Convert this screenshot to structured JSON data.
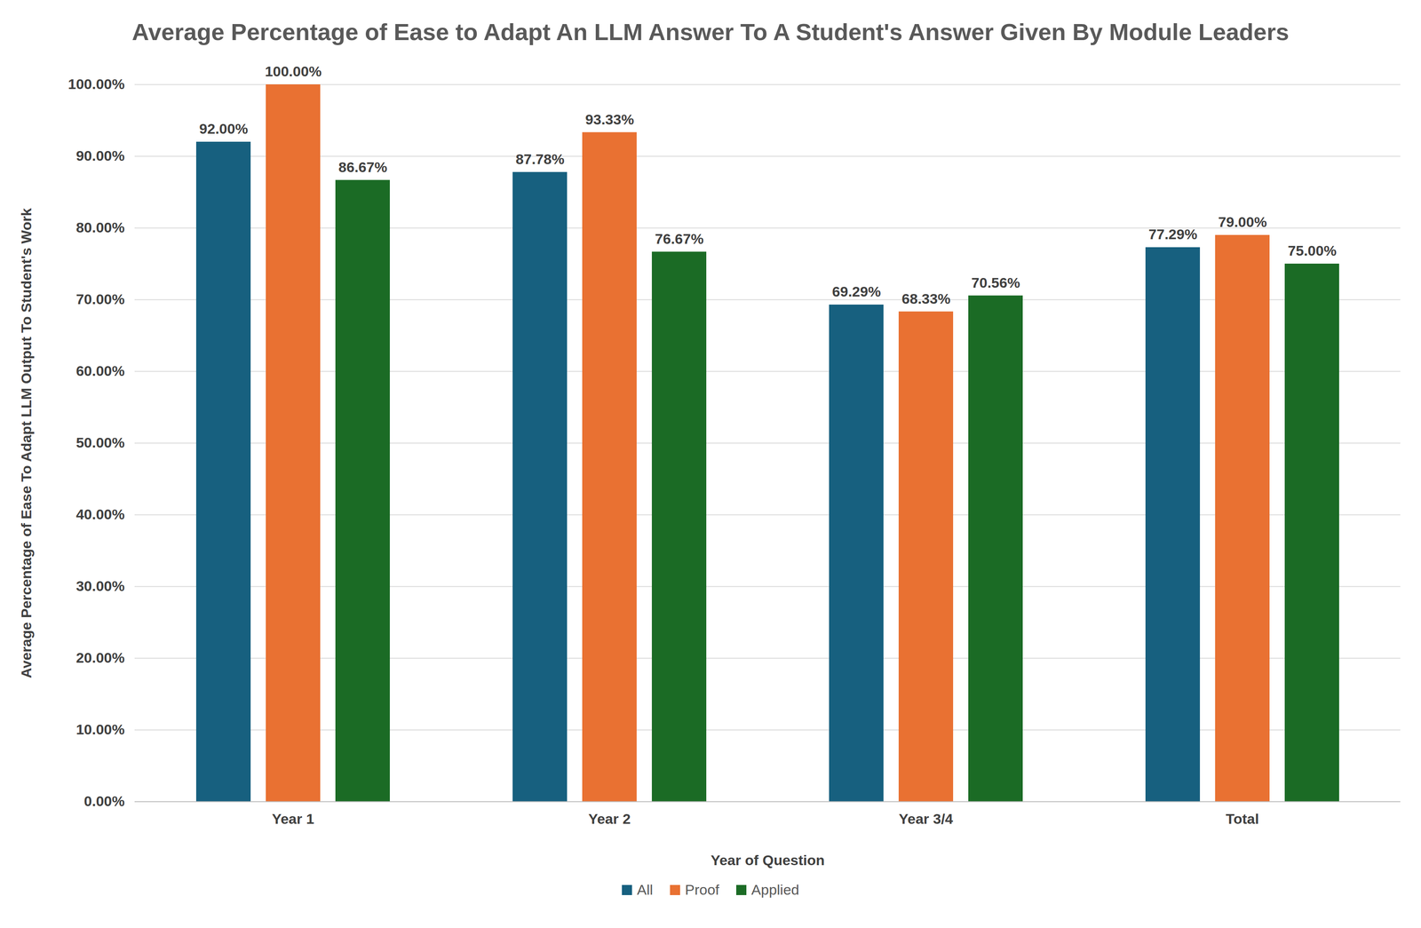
{
  "chart_data": {
    "type": "bar",
    "title": "Average Percentage of Ease to Adapt An LLM Answer To A Student's Answer Given By Module Leaders",
    "xlabel": "Year of Question",
    "ylabel": "Average Percentage of Ease To Adapt LLM Output To Student's Work",
    "categories": [
      "Year 1",
      "Year 2",
      "Year 3/4",
      "Total"
    ],
    "series": [
      {
        "name": "All",
        "color": "#17607f",
        "values": [
          92.0,
          87.78,
          69.29,
          77.29
        ],
        "value_labels": [
          "92.00%",
          "87.78%",
          "69.29%",
          "77.29%"
        ]
      },
      {
        "name": "Proof",
        "color": "#e97132",
        "values": [
          100.0,
          93.33,
          68.33,
          79.0
        ],
        "value_labels": [
          "100.00%",
          "93.33%",
          "68.33%",
          "79.00%"
        ]
      },
      {
        "name": "Applied",
        "color": "#1b6b25",
        "values": [
          86.67,
          76.67,
          70.56,
          75.0
        ],
        "value_labels": [
          "86.67%",
          "76.67%",
          "70.56%",
          "75.00%"
        ]
      }
    ],
    "ylim": [
      0,
      100
    ],
    "yticks": [
      {
        "value": 0,
        "label": "0.00%"
      },
      {
        "value": 10,
        "label": "10.00%"
      },
      {
        "value": 20,
        "label": "20.00%"
      },
      {
        "value": 30,
        "label": "30.00%"
      },
      {
        "value": 40,
        "label": "40.00%"
      },
      {
        "value": 50,
        "label": "50.00%"
      },
      {
        "value": 60,
        "label": "60.00%"
      },
      {
        "value": 70,
        "label": "70.00%"
      },
      {
        "value": 80,
        "label": "80.00%"
      },
      {
        "value": 90,
        "label": "90.00%"
      },
      {
        "value": 100,
        "label": "100.00%"
      }
    ],
    "grid": true,
    "legend": "bottom",
    "data_labels": true
  }
}
